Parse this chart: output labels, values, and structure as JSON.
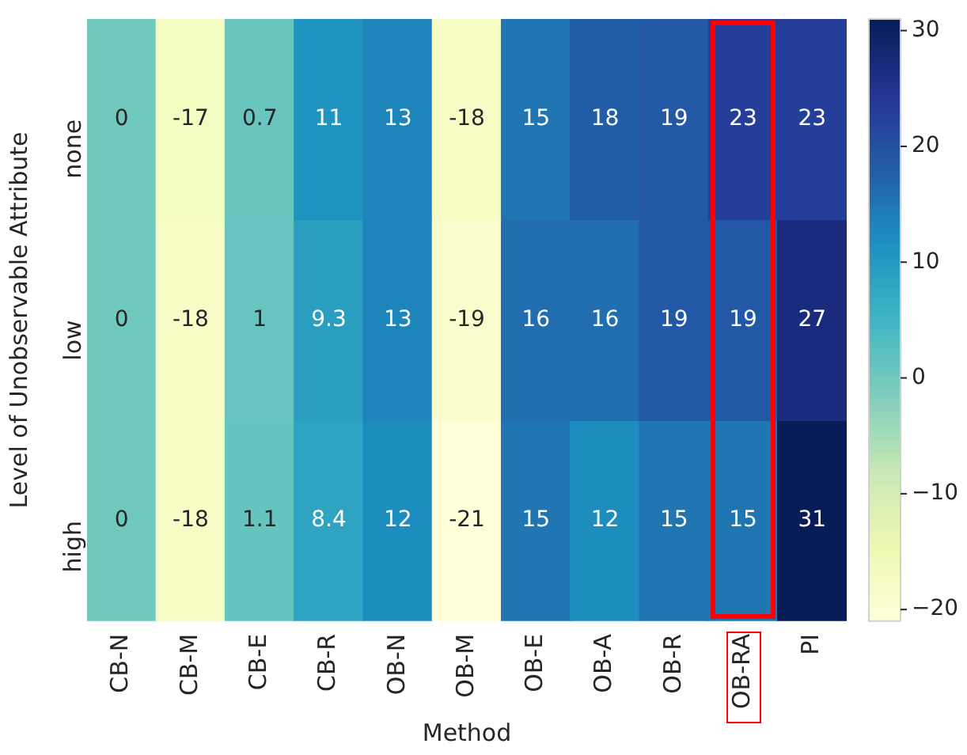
{
  "chart_data": {
    "type": "heatmap",
    "xlabel": "Method",
    "ylabel": "Level of Unobservable Attribute",
    "categories": [
      "CB-N",
      "CB-M",
      "CB-E",
      "CB-R",
      "OB-N",
      "OB-M",
      "OB-E",
      "OB-A",
      "OB-R",
      "OB-RA",
      "PI"
    ],
    "y_categories": [
      "none",
      "low",
      "high"
    ],
    "cells": [
      [
        0,
        -17,
        0.7,
        11,
        13,
        -18,
        15,
        18,
        19,
        23,
        23
      ],
      [
        0,
        -18,
        1,
        9.3,
        13,
        -19,
        16,
        16,
        19,
        19,
        27
      ],
      [
        0,
        -18,
        1.1,
        8.4,
        12,
        -21,
        15,
        12,
        15,
        15,
        31
      ]
    ],
    "data_labels": true,
    "clim": [
      -21,
      31
    ],
    "cticks": [
      {
        "value": -20,
        "label": "−20"
      },
      {
        "value": -10,
        "label": "−10"
      },
      0,
      10,
      20,
      30
    ]
  }
}
